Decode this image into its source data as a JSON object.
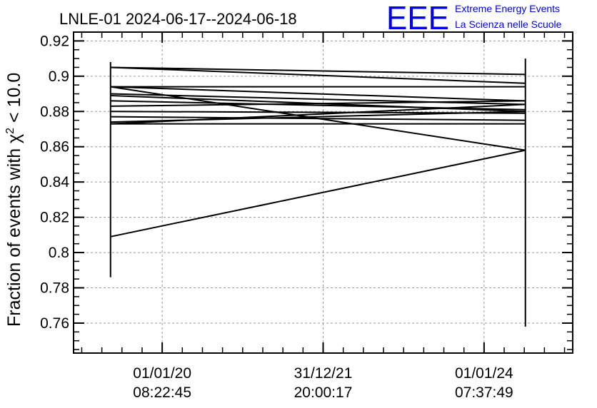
{
  "chart_data": {
    "type": "line",
    "title": "LNLE-01 2024-06-17--2024-06-18",
    "ylabel_prefix": "Fraction of events with χ",
    "ylabel_sup": "2",
    "ylabel_suffix": " < 10.0",
    "xlabel": "",
    "ylim": [
      0.743,
      0.925
    ],
    "xlim": [
      0.0,
      1.0
    ],
    "grid": true,
    "x_ticks": [
      {
        "x": 0.1776,
        "date": "01/01/20",
        "time": "08:22:45"
      },
      {
        "x": 0.5,
        "date": "31/12/21",
        "time": "20:00:17"
      },
      {
        "x": 0.8224,
        "date": "01/01/24",
        "time": "07:37:49"
      }
    ],
    "y_ticks": [
      "0.76",
      "0.78",
      "0.8",
      "0.82",
      "0.84",
      "0.86",
      "0.88",
      "0.9",
      "0.92"
    ],
    "y_tick_values": [
      0.76,
      0.78,
      0.8,
      0.82,
      0.84,
      0.86,
      0.88,
      0.9,
      0.92
    ],
    "x_points": [
      0.0741,
      0.9052
    ],
    "series": [
      {
        "values": [
          0.905,
          0.901
        ]
      },
      {
        "values": [
          0.905,
          0.896
        ]
      },
      {
        "values": [
          0.894,
          0.894
        ]
      },
      {
        "values": [
          0.894,
          0.886
        ]
      },
      {
        "values": [
          0.894,
          0.858
        ]
      },
      {
        "values": [
          0.889,
          0.88
        ]
      },
      {
        "values": [
          0.89,
          0.884
        ]
      },
      {
        "values": [
          0.886,
          0.881
        ]
      },
      {
        "values": [
          0.883,
          0.886
        ]
      },
      {
        "values": [
          0.88,
          0.879
        ]
      },
      {
        "values": [
          0.877,
          0.875
        ]
      },
      {
        "values": [
          0.874,
          0.88
        ]
      },
      {
        "values": [
          0.873,
          0.884
        ]
      },
      {
        "values": [
          0.873,
          0.873
        ]
      },
      {
        "values": [
          0.809,
          0.858
        ]
      }
    ],
    "error_bars": [
      {
        "x": 0.0741,
        "low": 0.786,
        "high": 0.908
      },
      {
        "x": 0.9052,
        "low": 0.758,
        "high": 0.91
      }
    ]
  },
  "logo": {
    "mark": "EEE",
    "line1": "Extreme Energy Events",
    "line2": "La Scienza nelle Scuole"
  }
}
